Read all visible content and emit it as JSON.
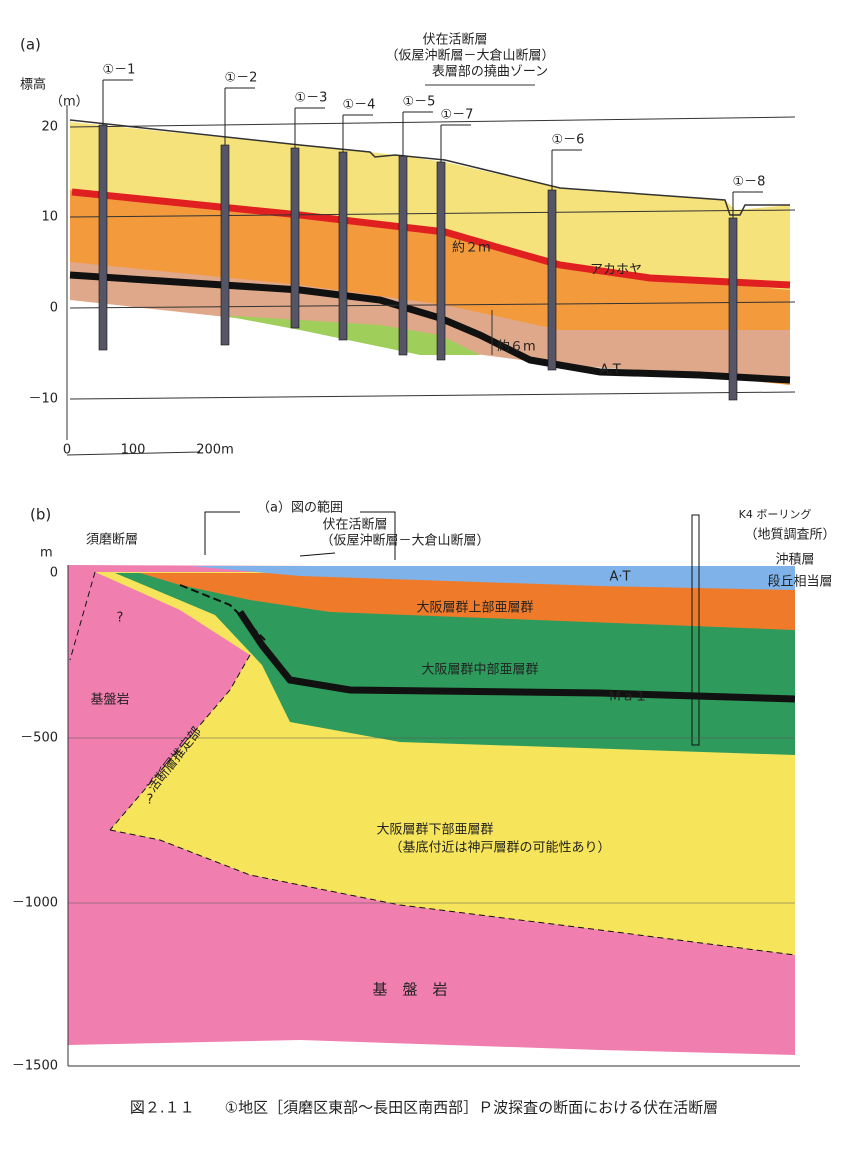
{
  "panel_a": {
    "label": "(a)",
    "elevation_label": "標高",
    "elevation_unit": "（m）",
    "yticks": [
      "20",
      "10",
      "0",
      "－10"
    ],
    "scale": [
      "0",
      "100",
      "200m"
    ],
    "boreholes": [
      "①－1",
      "①－2",
      "①－3",
      "①－4",
      "①－5",
      "①－7",
      "①－6",
      "①－8"
    ],
    "fault_title": "伏在活断層",
    "fault_names": "（仮屋沖断層－大倉山断層）",
    "flexure_zone": "表層部の撓曲ゾーン",
    "offset_upper": "約２m",
    "akahoya": "アカホヤ",
    "offset_lower": "約６m",
    "at": "A.T"
  },
  "panel_b": {
    "label": "(b)",
    "unit": "m",
    "yticks": [
      "0",
      "－500",
      "－1000",
      "－1500"
    ],
    "suma_fault": "須磨断層",
    "range_a": "（a）図の範囲",
    "fault_title": "伏在活断層",
    "fault_names": "（仮屋沖断層－大倉山断層）",
    "k4": "K4 ボーリング",
    "k4_org": "（地質調査所）",
    "alluvium": "沖積層",
    "terrace": "段丘相当層",
    "at": "A·T",
    "upper": "大阪層群上部亜層群",
    "middle": "大阪層群中部亜層群",
    "ma1": "Ｍａ１",
    "basement_left": "基盤岩",
    "active_fault_zone": "活断層推定部",
    "question": "?",
    "lower": "大阪層群下部亜層群",
    "lower_note": "（基底付近は神戸層群の可能性あり）",
    "basement": "基　盤　岩"
  },
  "caption": "図２.１１　　①地区［須磨区東部～長田区南西部］Ｐ波探査の断面における伏在活断層"
}
